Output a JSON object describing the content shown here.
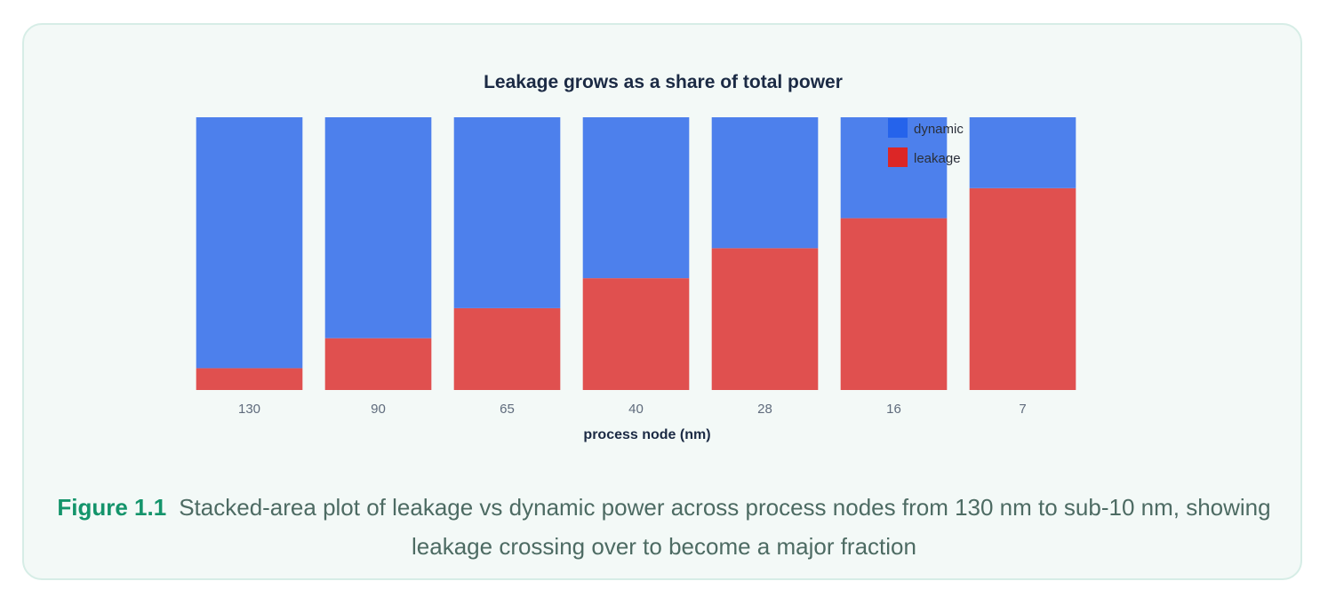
{
  "figure": {
    "label": "Figure 1.1",
    "caption": "Stacked-area plot of leakage vs dynamic power across process nodes from 130 nm to sub-10 nm, showing leakage crossing over to become a major fraction"
  },
  "colors": {
    "dynamic": "#4d80ec",
    "leakage": "#e0504f",
    "legend_dynamic": "#2563eb",
    "legend_leakage": "#dc2626",
    "card_bg": "#f3f9f7",
    "card_border": "#d6ede6"
  },
  "chart_data": {
    "type": "bar",
    "stacked": true,
    "title": "Leakage grows as a share of total power",
    "xlabel": "process node (nm)",
    "ylabel": "",
    "ylim": [
      0,
      100
    ],
    "y_axis_visible": false,
    "grid": false,
    "legend_position": "top-right",
    "categories": [
      "130",
      "90",
      "65",
      "40",
      "28",
      "16",
      "7"
    ],
    "series": [
      {
        "name": "leakage",
        "key": "leakage",
        "values": [
          8,
          19,
          30,
          41,
          52,
          63,
          74
        ]
      },
      {
        "name": "dynamic",
        "key": "dynamic",
        "values": [
          92,
          81,
          70,
          59,
          48,
          37,
          26
        ]
      }
    ],
    "legend": [
      {
        "name": "dynamic",
        "key": "dynamic"
      },
      {
        "name": "leakage",
        "key": "leakage"
      }
    ]
  }
}
